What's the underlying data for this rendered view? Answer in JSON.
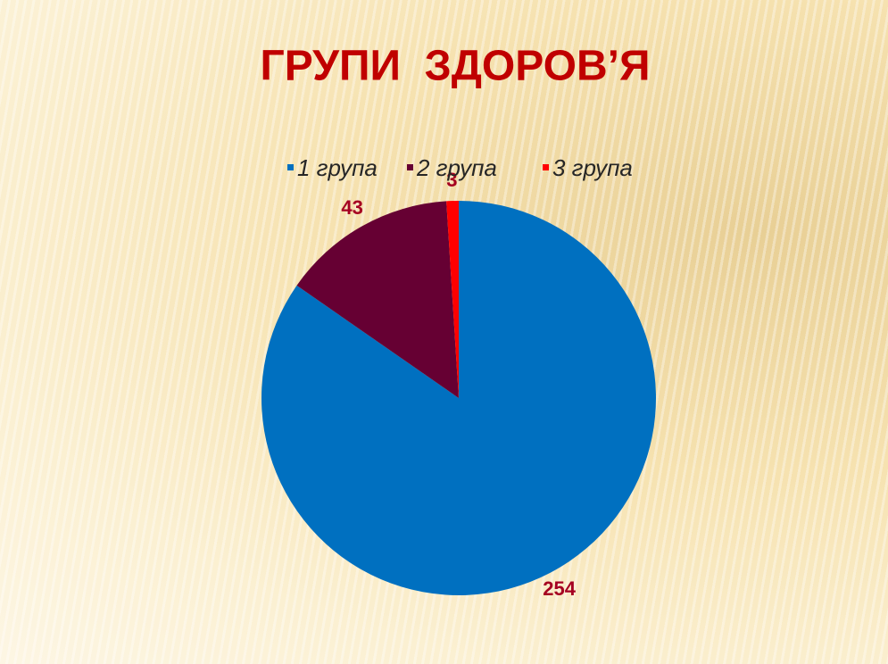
{
  "chart_data": {
    "type": "pie",
    "title": "ГРУПИ  ЗДОРОВ’Я",
    "categories": [
      "1 група",
      "2 група",
      "3 група"
    ],
    "values": [
      254,
      43,
      3
    ],
    "colors": [
      "#0070c0",
      "#660033",
      "#ff0000"
    ],
    "legend": "top"
  }
}
